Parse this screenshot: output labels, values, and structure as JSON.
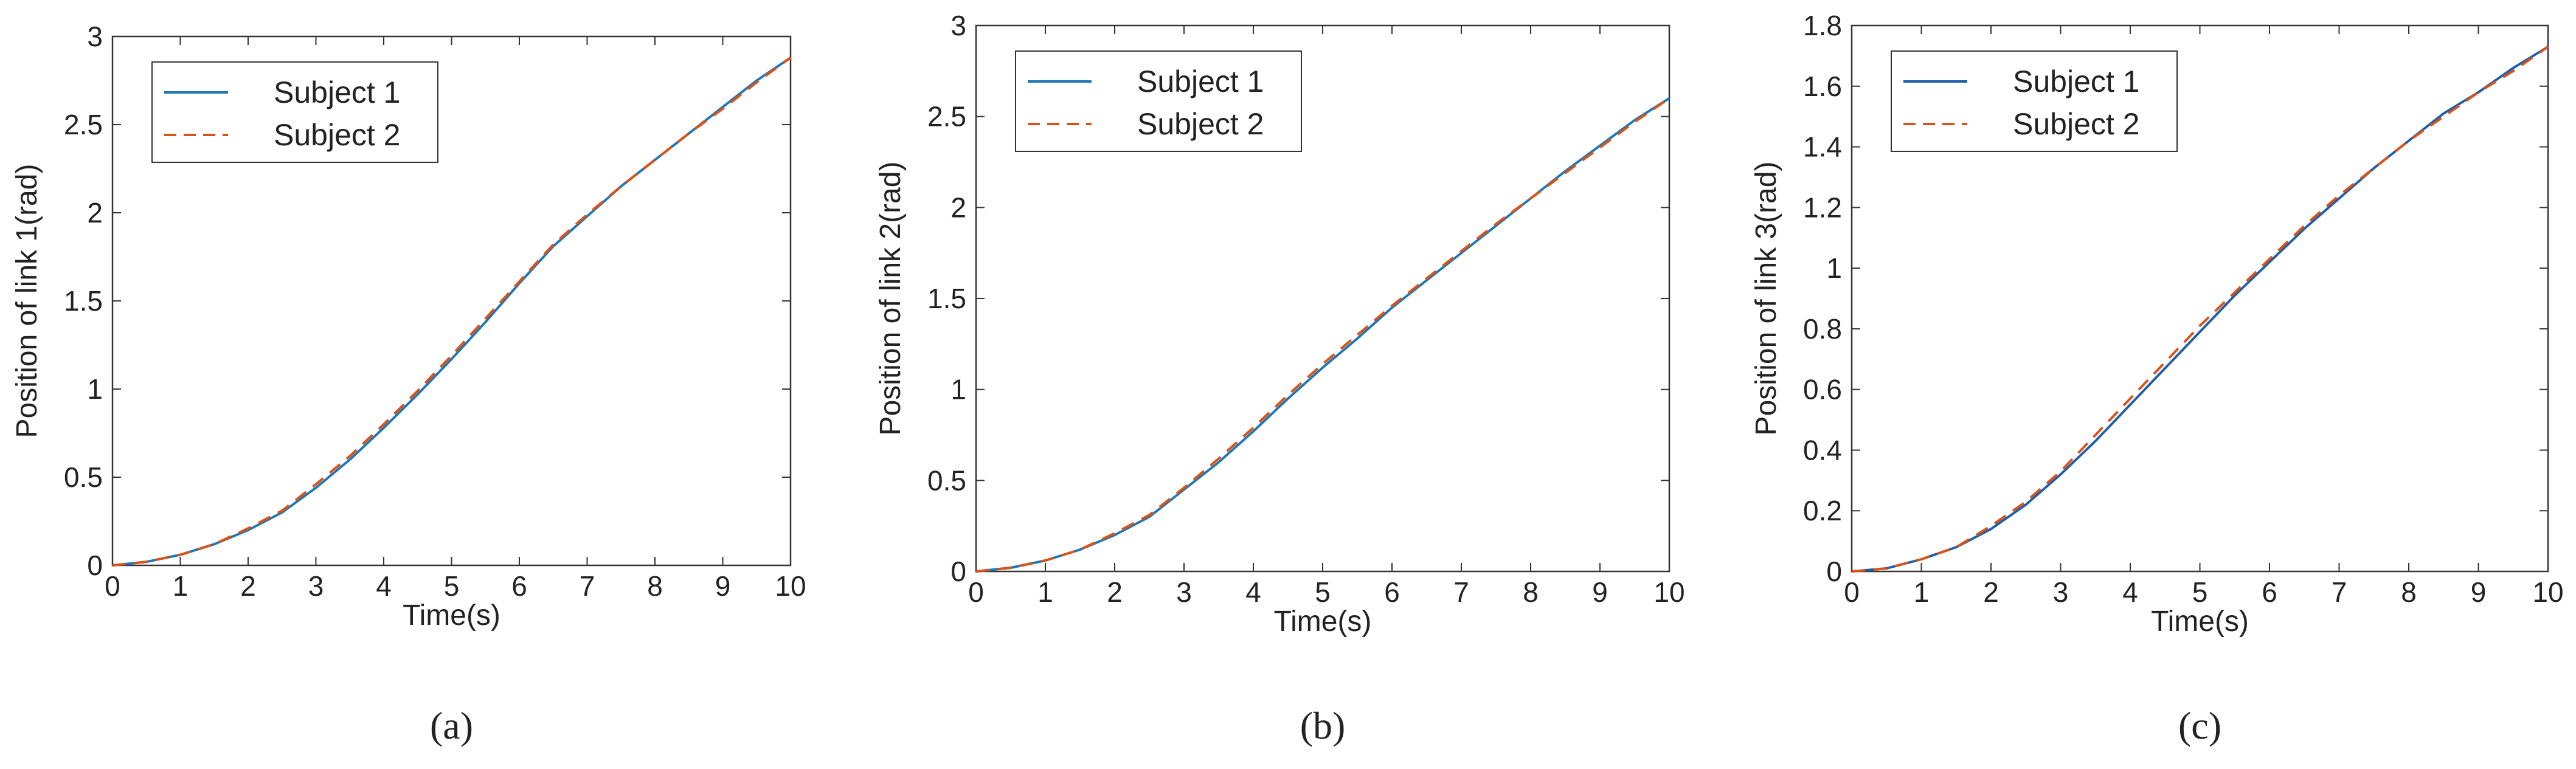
{
  "chart_data": [
    {
      "type": "line",
      "caption": "(a)",
      "xlabel": "Time(s)",
      "ylabel": "Position of link 1(rad)",
      "xlim": [
        0,
        10
      ],
      "ylim": [
        0,
        3
      ],
      "xticks": [
        0,
        1,
        2,
        3,
        4,
        5,
        6,
        7,
        8,
        9,
        10
      ],
      "yticks": [
        0,
        0.5,
        1,
        1.5,
        2,
        2.5,
        3
      ],
      "legend_position": "top-left",
      "x": [
        0,
        0.5,
        1,
        1.5,
        2,
        2.5,
        3,
        3.5,
        4,
        4.5,
        5,
        5.5,
        6,
        6.5,
        7,
        7.5,
        8,
        8.5,
        9,
        9.5,
        10
      ],
      "series": [
        {
          "name": "Subject 1",
          "color": "#1f77b4",
          "style": "solid",
          "values": [
            0,
            0.02,
            0.06,
            0.12,
            0.2,
            0.3,
            0.44,
            0.6,
            0.78,
            0.97,
            1.17,
            1.38,
            1.6,
            1.81,
            1.98,
            2.15,
            2.3,
            2.45,
            2.6,
            2.75,
            2.88
          ]
        },
        {
          "name": "Subject 2",
          "color": "#d95319",
          "style": "dashed",
          "values": [
            0,
            0.02,
            0.06,
            0.12,
            0.21,
            0.31,
            0.46,
            0.62,
            0.8,
            0.99,
            1.19,
            1.4,
            1.61,
            1.82,
            1.99,
            2.15,
            2.3,
            2.45,
            2.59,
            2.74,
            2.88
          ]
        }
      ]
    },
    {
      "type": "line",
      "caption": "(b)",
      "xlabel": "Time(s)",
      "ylabel": "Position of link 2(rad)",
      "xlim": [
        0,
        10
      ],
      "ylim": [
        0,
        3
      ],
      "xticks": [
        0,
        1,
        2,
        3,
        4,
        5,
        6,
        7,
        8,
        9,
        10
      ],
      "yticks": [
        0,
        0.5,
        1,
        1.5,
        2,
        2.5,
        3
      ],
      "legend_position": "top-left",
      "x": [
        0,
        0.5,
        1,
        1.5,
        2,
        2.5,
        3,
        3.5,
        4,
        4.5,
        5,
        5.5,
        6,
        6.5,
        7,
        7.5,
        8,
        8.5,
        9,
        9.5,
        10
      ],
      "series": [
        {
          "name": "Subject 1",
          "color": "#1f77b4",
          "style": "solid",
          "values": [
            0,
            0.02,
            0.06,
            0.12,
            0.2,
            0.3,
            0.45,
            0.6,
            0.77,
            0.95,
            1.12,
            1.28,
            1.45,
            1.6,
            1.75,
            1.9,
            2.05,
            2.2,
            2.34,
            2.48,
            2.6
          ]
        },
        {
          "name": "Subject 2",
          "color": "#d95319",
          "style": "dashed",
          "values": [
            0,
            0.02,
            0.06,
            0.12,
            0.21,
            0.31,
            0.46,
            0.62,
            0.79,
            0.97,
            1.14,
            1.3,
            1.46,
            1.61,
            1.76,
            1.91,
            2.05,
            2.19,
            2.33,
            2.47,
            2.6
          ]
        }
      ]
    },
    {
      "type": "line",
      "caption": "(c)",
      "xlabel": "Time(s)",
      "ylabel": "Position of link 3(rad)",
      "xlim": [
        0,
        10
      ],
      "ylim": [
        0,
        1.8
      ],
      "xticks": [
        0,
        1,
        2,
        3,
        4,
        5,
        6,
        7,
        8,
        9,
        10
      ],
      "yticks": [
        0,
        0.2,
        0.4,
        0.6,
        0.8,
        1,
        1.2,
        1.4,
        1.6,
        1.8
      ],
      "legend_position": "top-left",
      "x": [
        0,
        0.5,
        1,
        1.5,
        2,
        2.5,
        3,
        3.5,
        4,
        4.5,
        5,
        5.5,
        6,
        6.5,
        7,
        7.5,
        8,
        8.5,
        9,
        9.5,
        10
      ],
      "series": [
        {
          "name": "Subject 1",
          "color": "#1f5fa8",
          "style": "solid",
          "values": [
            0,
            0.01,
            0.04,
            0.08,
            0.14,
            0.22,
            0.32,
            0.43,
            0.55,
            0.67,
            0.79,
            0.91,
            1.02,
            1.13,
            1.23,
            1.33,
            1.42,
            1.51,
            1.58,
            1.66,
            1.73
          ]
        },
        {
          "name": "Subject 2",
          "color": "#d95319",
          "style": "dashed",
          "values": [
            0,
            0.01,
            0.04,
            0.08,
            0.15,
            0.23,
            0.33,
            0.45,
            0.57,
            0.69,
            0.81,
            0.92,
            1.03,
            1.14,
            1.24,
            1.33,
            1.42,
            1.5,
            1.58,
            1.65,
            1.73
          ]
        }
      ]
    }
  ]
}
